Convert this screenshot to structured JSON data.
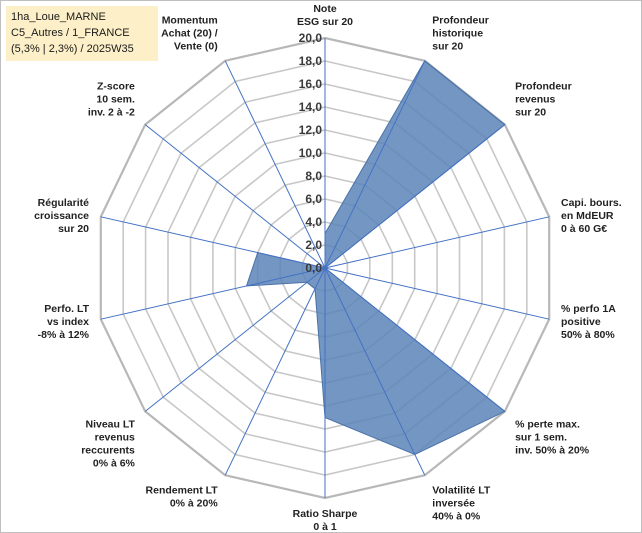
{
  "info_box": {
    "line1": "1ha_Loue_MARNE",
    "line2": "C5_Autres / 1_FRANCE",
    "line3": "(5,3% | 2,3%) / 2025W35"
  },
  "chart_data": {
    "type": "radar",
    "range": [
      0,
      20
    ],
    "tick_step": 2,
    "tick_labels": [
      "0,0",
      "2,0",
      "4,0",
      "6,0",
      "8,0",
      "10,0",
      "12,0",
      "14,0",
      "16,0",
      "18,0",
      "20,0"
    ],
    "grid": true,
    "axes": [
      {
        "label": "Note\nESG sur 20"
      },
      {
        "label": "Profondeur\nhistorique\nsur 20"
      },
      {
        "label": "Profondeur\nrevenus\nsur 20"
      },
      {
        "label": "Capi. bours.\nen MdEUR\n0 à 60 G€"
      },
      {
        "label": "% perfo 1A\npositive\n50% à 80%"
      },
      {
        "label": "% perte max.\nsur 1 sem.\ninv. 50% à 20%"
      },
      {
        "label": "Volatilité LT\ninversée\n40% à 0%"
      },
      {
        "label": "Ratio Sharpe\n0 à 1"
      },
      {
        "label": "Rendement LT\n0% à 20%"
      },
      {
        "label": "Niveau LT\nrevenus\nreccurents\n0% à 6%"
      },
      {
        "label": "Perfo. LT\nvs index\n-8% à 12%"
      },
      {
        "label": "Régularité\ncroissance\nsur 20"
      },
      {
        "label": "Z-score\n10 sem.\ninv. 2 à -2"
      },
      {
        "label": "Momentum\nAchat (20) /\nVente (0)"
      }
    ],
    "values": [
      3,
      20,
      20,
      0,
      0,
      20,
      18,
      13,
      2,
      2,
      7,
      6,
      0,
      0
    ],
    "colors": {
      "fill": "#5b84b8",
      "fill_opacity": 0.85,
      "stroke": "#4a72a8",
      "grid": "#c8c8c8",
      "spoke": "#4472c4"
    }
  }
}
